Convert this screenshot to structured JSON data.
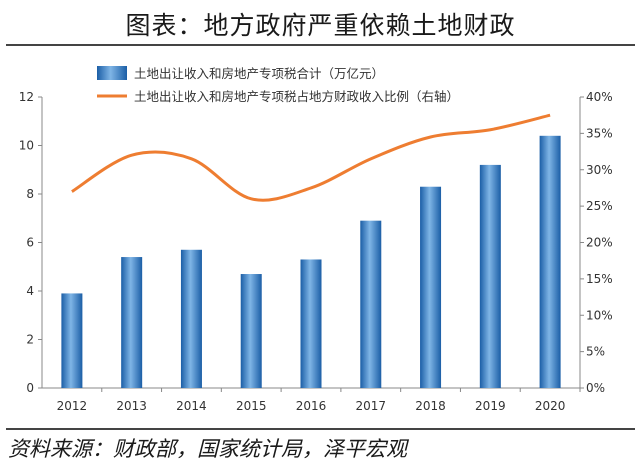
{
  "header": {
    "title": "图表：地方政府严重依赖土地财政"
  },
  "footer": {
    "source": "资料来源：财政部，国家统计局，泽平宏观"
  },
  "chart_data": {
    "type": "bar",
    "categories": [
      "2012",
      "2013",
      "2014",
      "2015",
      "2016",
      "2017",
      "2018",
      "2019",
      "2020"
    ],
    "series": [
      {
        "name": "土地出让收入和房地产专项税合计（万亿元）",
        "kind": "bar",
        "axis": "left",
        "values": [
          3.9,
          5.4,
          5.7,
          4.7,
          5.3,
          6.9,
          8.3,
          9.2,
          10.4
        ],
        "color": "#2e78bd"
      },
      {
        "name": "土地出让收入和房地产专项税占地方财政收入比例（右轴）",
        "kind": "line",
        "axis": "right",
        "values": [
          27,
          32,
          31.5,
          26,
          27.5,
          31.5,
          34.5,
          35.5,
          37.5
        ],
        "color": "#ee7d31"
      }
    ],
    "left_axis": {
      "ylim": [
        0,
        12
      ],
      "ticks": [
        "0",
        "2",
        "4",
        "6",
        "8",
        "10",
        "12"
      ]
    },
    "right_axis": {
      "ylim": [
        0,
        40
      ],
      "ticks": [
        "0%",
        "5%",
        "10%",
        "15%",
        "20%",
        "25%",
        "30%",
        "35%",
        "40%"
      ]
    },
    "legend_position": "top",
    "grid": false
  }
}
